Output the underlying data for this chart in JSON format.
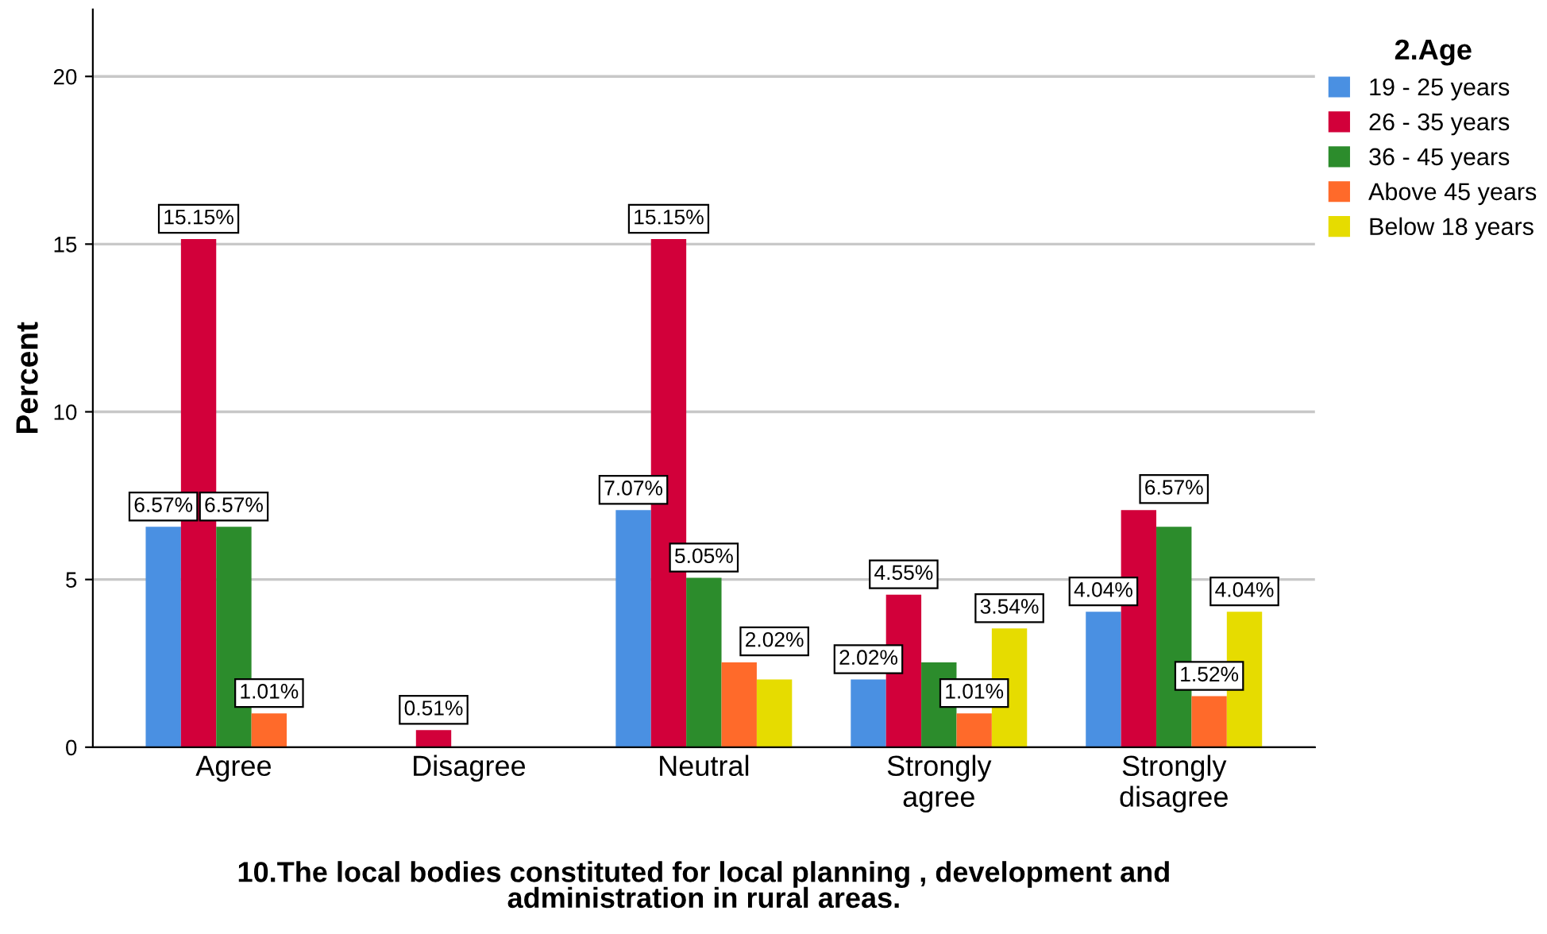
{
  "chart_data": {
    "type": "bar",
    "xlabel": "10.The local bodies constituted for local planning , development and\nadministration in rural areas.",
    "ylabel": "Percent",
    "legend_title": "2.Age",
    "legend": "right",
    "grid": "y",
    "categories": [
      "Agree",
      "Disagree",
      "Neutral",
      "Strongly\nagree",
      "Strongly\ndisagree"
    ],
    "ylim": [
      0,
      22
    ],
    "yticks": [
      0,
      5,
      10,
      15,
      20
    ],
    "series": [
      {
        "name": "19 - 25 years",
        "color": "#4a90e2",
        "values": [
          6.57,
          null,
          7.07,
          2.02,
          4.04
        ],
        "value_labels": [
          "6.57%",
          null,
          "7.07%",
          "2.02%",
          "4.04%"
        ]
      },
      {
        "name": "26 - 35 years",
        "color": "#d2003a",
        "values": [
          15.15,
          0.51,
          15.15,
          4.55,
          7.07
        ],
        "value_labels": [
          "15.15%",
          "0.51%",
          "15.15%",
          "4.55%",
          null
        ]
      },
      {
        "name": "36 - 45 years",
        "color": "#2c8c2c",
        "values": [
          6.57,
          null,
          5.05,
          2.53,
          6.57
        ],
        "value_labels": [
          "6.57%",
          null,
          "5.05%",
          null,
          "6.57%"
        ]
      },
      {
        "name": "Above 45 years",
        "color": "#ff6a2a",
        "values": [
          1.01,
          null,
          2.53,
          1.01,
          1.52
        ],
        "value_labels": [
          "1.01%",
          null,
          null,
          "1.01%",
          "1.52%"
        ]
      },
      {
        "name": "Below 18 years",
        "color": "#e6dc00",
        "values": [
          null,
          null,
          2.02,
          3.54,
          4.04
        ],
        "value_labels": [
          null,
          null,
          "2.02%",
          "3.54%",
          "4.04%"
        ]
      }
    ]
  }
}
